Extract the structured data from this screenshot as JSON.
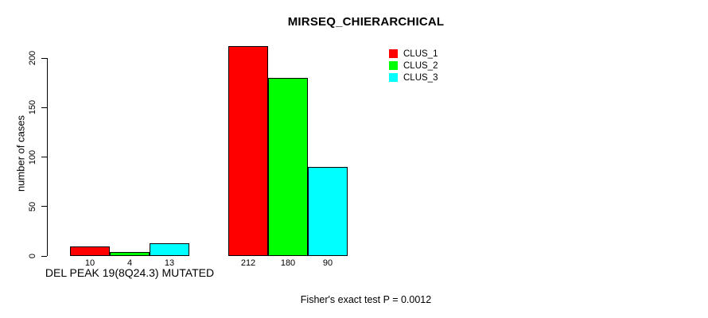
{
  "chart_data": {
    "type": "bar",
    "title": "MIRSEQ_CHIERARCHICAL",
    "ylabel": "number of cases",
    "xlabel": "",
    "yticks": [
      0,
      50,
      100,
      150,
      200
    ],
    "ylim": [
      0,
      215
    ],
    "grid": false,
    "legend_position": "top-right",
    "series": [
      {
        "name": "CLUS_1",
        "color": "#FF0000"
      },
      {
        "name": "CLUS_2",
        "color": "#00FF00"
      },
      {
        "name": "CLUS_3",
        "color": "#00FFFF"
      }
    ],
    "groups": [
      {
        "label": "DEL PEAK 19(8Q24.3) MUTATED",
        "values": [
          10,
          4,
          13
        ]
      },
      {
        "label": "",
        "values": [
          212,
          180,
          90
        ]
      }
    ],
    "annotation": "Fisher's exact test P = 0.0012"
  }
}
